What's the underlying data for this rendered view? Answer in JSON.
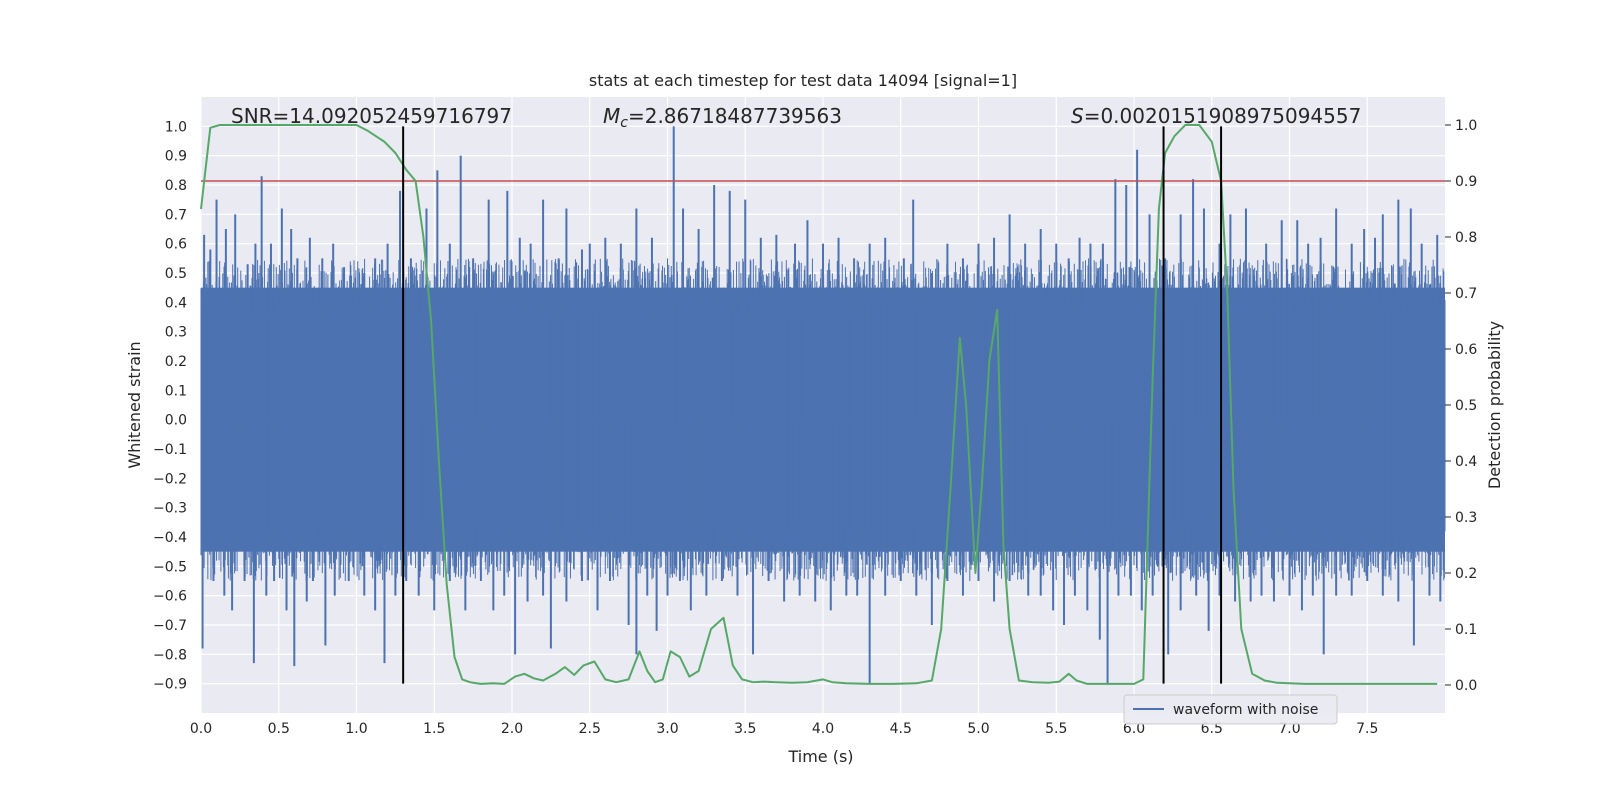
{
  "chart_data": {
    "type": "line",
    "title": "stats at each timestep for test data 14094 [signal=1]",
    "xlabel": "Time (s)",
    "ylabel": "Whitened strain",
    "y2label": "Detection probability",
    "xlim": [
      0.0,
      8.0
    ],
    "ylim": [
      -1.0,
      1.1
    ],
    "y2lim": [
      -0.05,
      1.05
    ],
    "xticks": [
      "0.0",
      "0.5",
      "1.0",
      "1.5",
      "2.0",
      "2.5",
      "3.0",
      "3.5",
      "4.0",
      "4.5",
      "5.0",
      "5.5",
      "6.0",
      "6.5",
      "7.0",
      "7.5"
    ],
    "yticks": [
      "-0.9",
      "-0.8",
      "-0.7",
      "-0.6",
      "-0.5",
      "-0.4",
      "-0.3",
      "-0.2",
      "-0.1",
      "0.0",
      "0.1",
      "0.2",
      "0.3",
      "0.4",
      "0.5",
      "0.6",
      "0.7",
      "0.8",
      "0.9",
      "1.0"
    ],
    "y2ticks": [
      "0.0",
      "0.1",
      "0.2",
      "0.3",
      "0.4",
      "0.5",
      "0.6",
      "0.7",
      "0.8",
      "0.9",
      "1.0"
    ],
    "grid": true,
    "legend": {
      "location": "lower-right",
      "entries": [
        "waveform with noise"
      ]
    },
    "annotations": {
      "snr": "SNR=14.092052459716797",
      "mc_symbol": "M",
      "mc_sub": "c",
      "mc_value": "=2.86718487739563",
      "s_symbol": "S",
      "s_value": "=0.0020151908975094557"
    },
    "threshold_line": {
      "axis": "y2",
      "value": 0.9,
      "color": "#c44e52"
    },
    "vertical_lines": [
      1.3,
      6.19,
      6.56
    ],
    "waveform": {
      "name": "waveform with noise",
      "color": "#4c72b0",
      "core_band": [
        -0.45,
        0.45
      ],
      "upper_spikes": [
        {
          "x": 0.02,
          "y": 0.63
        },
        {
          "x": 0.06,
          "y": 0.58
        },
        {
          "x": 0.1,
          "y": 0.75
        },
        {
          "x": 0.16,
          "y": 0.65
        },
        {
          "x": 0.22,
          "y": 0.7
        },
        {
          "x": 0.3,
          "y": 0.53
        },
        {
          "x": 0.35,
          "y": 0.6
        },
        {
          "x": 0.39,
          "y": 0.83
        },
        {
          "x": 0.45,
          "y": 0.6
        },
        {
          "x": 0.52,
          "y": 0.72
        },
        {
          "x": 0.58,
          "y": 0.65
        },
        {
          "x": 0.62,
          "y": 0.55
        },
        {
          "x": 0.7,
          "y": 0.62
        },
        {
          "x": 0.78,
          "y": 0.55
        },
        {
          "x": 0.85,
          "y": 0.6
        },
        {
          "x": 0.92,
          "y": 0.52
        },
        {
          "x": 1.05,
          "y": 0.5
        },
        {
          "x": 1.12,
          "y": 0.55
        },
        {
          "x": 1.2,
          "y": 0.6
        },
        {
          "x": 1.28,
          "y": 0.78
        },
        {
          "x": 1.35,
          "y": 0.55
        },
        {
          "x": 1.45,
          "y": 0.72
        },
        {
          "x": 1.52,
          "y": 0.85
        },
        {
          "x": 1.6,
          "y": 0.6
        },
        {
          "x": 1.67,
          "y": 0.9
        },
        {
          "x": 1.75,
          "y": 0.55
        },
        {
          "x": 1.85,
          "y": 0.75
        },
        {
          "x": 1.97,
          "y": 0.78
        },
        {
          "x": 2.05,
          "y": 0.62
        },
        {
          "x": 2.12,
          "y": 0.6
        },
        {
          "x": 2.2,
          "y": 0.75
        },
        {
          "x": 2.3,
          "y": 0.55
        },
        {
          "x": 2.35,
          "y": 0.72
        },
        {
          "x": 2.45,
          "y": 0.58
        },
        {
          "x": 2.5,
          "y": 0.6
        },
        {
          "x": 2.6,
          "y": 0.62
        },
        {
          "x": 2.7,
          "y": 0.6
        },
        {
          "x": 2.8,
          "y": 0.72
        },
        {
          "x": 2.9,
          "y": 0.62
        },
        {
          "x": 3.04,
          "y": 1.0
        },
        {
          "x": 3.1,
          "y": 0.72
        },
        {
          "x": 3.2,
          "y": 0.65
        },
        {
          "x": 3.3,
          "y": 0.8
        },
        {
          "x": 3.4,
          "y": 0.78
        },
        {
          "x": 3.5,
          "y": 0.75
        },
        {
          "x": 3.6,
          "y": 0.62
        },
        {
          "x": 3.7,
          "y": 0.63
        },
        {
          "x": 3.82,
          "y": 0.6
        },
        {
          "x": 3.9,
          "y": 0.68
        },
        {
          "x": 4.0,
          "y": 0.6
        },
        {
          "x": 4.1,
          "y": 0.62
        },
        {
          "x": 4.2,
          "y": 0.55
        },
        {
          "x": 4.3,
          "y": 0.6
        },
        {
          "x": 4.4,
          "y": 0.62
        },
        {
          "x": 4.52,
          "y": 0.55
        },
        {
          "x": 4.58,
          "y": 0.75
        },
        {
          "x": 4.7,
          "y": 0.5
        },
        {
          "x": 4.8,
          "y": 0.6
        },
        {
          "x": 4.9,
          "y": 0.55
        },
        {
          "x": 5.0,
          "y": 0.6
        },
        {
          "x": 5.1,
          "y": 0.62
        },
        {
          "x": 5.2,
          "y": 0.7
        },
        {
          "x": 5.3,
          "y": 0.6
        },
        {
          "x": 5.4,
          "y": 0.65
        },
        {
          "x": 5.5,
          "y": 0.6
        },
        {
          "x": 5.58,
          "y": 0.55
        },
        {
          "x": 5.65,
          "y": 0.62
        },
        {
          "x": 5.72,
          "y": 0.6
        },
        {
          "x": 5.8,
          "y": 0.6
        },
        {
          "x": 5.88,
          "y": 0.82
        },
        {
          "x": 5.95,
          "y": 0.8
        },
        {
          "x": 6.02,
          "y": 0.92
        },
        {
          "x": 6.1,
          "y": 0.7
        },
        {
          "x": 6.2,
          "y": 0.55
        },
        {
          "x": 6.3,
          "y": 0.7
        },
        {
          "x": 6.38,
          "y": 0.82
        },
        {
          "x": 6.45,
          "y": 0.72
        },
        {
          "x": 6.55,
          "y": 0.6
        },
        {
          "x": 6.62,
          "y": 0.7
        },
        {
          "x": 6.72,
          "y": 0.72
        },
        {
          "x": 6.85,
          "y": 0.6
        },
        {
          "x": 6.95,
          "y": 0.68
        },
        {
          "x": 7.05,
          "y": 0.68
        },
        {
          "x": 7.12,
          "y": 0.6
        },
        {
          "x": 7.2,
          "y": 0.62
        },
        {
          "x": 7.3,
          "y": 0.72
        },
        {
          "x": 7.4,
          "y": 0.6
        },
        {
          "x": 7.48,
          "y": 0.65
        },
        {
          "x": 7.55,
          "y": 0.62
        },
        {
          "x": 7.6,
          "y": 0.7
        },
        {
          "x": 7.7,
          "y": 0.75
        },
        {
          "x": 7.78,
          "y": 0.72
        },
        {
          "x": 7.85,
          "y": 0.6
        },
        {
          "x": 7.95,
          "y": 0.63
        }
      ],
      "lower_spikes": [
        {
          "x": 0.01,
          "y": -0.78
        },
        {
          "x": 0.08,
          "y": -0.55
        },
        {
          "x": 0.15,
          "y": -0.6
        },
        {
          "x": 0.2,
          "y": -0.65
        },
        {
          "x": 0.28,
          "y": -0.55
        },
        {
          "x": 0.34,
          "y": -0.83
        },
        {
          "x": 0.42,
          "y": -0.6
        },
        {
          "x": 0.47,
          "y": -0.55
        },
        {
          "x": 0.55,
          "y": -0.65
        },
        {
          "x": 0.6,
          "y": -0.84
        },
        {
          "x": 0.68,
          "y": -0.62
        },
        {
          "x": 0.72,
          "y": -0.55
        },
        {
          "x": 0.8,
          "y": -0.77
        },
        {
          "x": 0.86,
          "y": -0.6
        },
        {
          "x": 0.95,
          "y": -0.55
        },
        {
          "x": 1.05,
          "y": -0.6
        },
        {
          "x": 1.12,
          "y": -0.65
        },
        {
          "x": 1.18,
          "y": -0.83
        },
        {
          "x": 1.25,
          "y": -0.6
        },
        {
          "x": 1.32,
          "y": -0.55
        },
        {
          "x": 1.4,
          "y": -0.6
        },
        {
          "x": 1.5,
          "y": -0.65
        },
        {
          "x": 1.6,
          "y": -0.55
        },
        {
          "x": 1.7,
          "y": -0.65
        },
        {
          "x": 1.8,
          "y": -0.55
        },
        {
          "x": 1.88,
          "y": -0.65
        },
        {
          "x": 1.95,
          "y": -0.6
        },
        {
          "x": 2.02,
          "y": -0.8
        },
        {
          "x": 2.1,
          "y": -0.62
        },
        {
          "x": 2.2,
          "y": -0.6
        },
        {
          "x": 2.25,
          "y": -0.78
        },
        {
          "x": 2.35,
          "y": -0.62
        },
        {
          "x": 2.45,
          "y": -0.55
        },
        {
          "x": 2.55,
          "y": -0.65
        },
        {
          "x": 2.63,
          "y": -0.55
        },
        {
          "x": 2.75,
          "y": -0.7
        },
        {
          "x": 2.8,
          "y": -0.8
        },
        {
          "x": 2.87,
          "y": -0.6
        },
        {
          "x": 2.93,
          "y": -0.72
        },
        {
          "x": 3.0,
          "y": -0.6
        },
        {
          "x": 3.08,
          "y": -0.55
        },
        {
          "x": 3.15,
          "y": -0.65
        },
        {
          "x": 3.25,
          "y": -0.6
        },
        {
          "x": 3.35,
          "y": -0.55
        },
        {
          "x": 3.45,
          "y": -0.6
        },
        {
          "x": 3.55,
          "y": -0.8
        },
        {
          "x": 3.65,
          "y": -0.55
        },
        {
          "x": 3.75,
          "y": -0.62
        },
        {
          "x": 3.85,
          "y": -0.6
        },
        {
          "x": 3.95,
          "y": -0.62
        },
        {
          "x": 4.05,
          "y": -0.65
        },
        {
          "x": 4.15,
          "y": -0.6
        },
        {
          "x": 4.22,
          "y": -0.6
        },
        {
          "x": 4.3,
          "y": -0.9
        },
        {
          "x": 4.4,
          "y": -0.6
        },
        {
          "x": 4.5,
          "y": -0.55
        },
        {
          "x": 4.6,
          "y": -0.6
        },
        {
          "x": 4.7,
          "y": -0.7
        },
        {
          "x": 4.8,
          "y": -0.55
        },
        {
          "x": 4.9,
          "y": -0.6
        },
        {
          "x": 5.0,
          "y": -0.55
        },
        {
          "x": 5.1,
          "y": -0.62
        },
        {
          "x": 5.2,
          "y": -0.55
        },
        {
          "x": 5.32,
          "y": -0.6
        },
        {
          "x": 5.4,
          "y": -0.6
        },
        {
          "x": 5.48,
          "y": -0.65
        },
        {
          "x": 5.55,
          "y": -0.7
        },
        {
          "x": 5.62,
          "y": -0.6
        },
        {
          "x": 5.7,
          "y": -0.65
        },
        {
          "x": 5.78,
          "y": -0.75
        },
        {
          "x": 5.83,
          "y": -0.9
        },
        {
          "x": 5.9,
          "y": -0.6
        },
        {
          "x": 5.98,
          "y": -0.6
        },
        {
          "x": 6.05,
          "y": -0.65
        },
        {
          "x": 6.12,
          "y": -0.6
        },
        {
          "x": 6.22,
          "y": -0.8
        },
        {
          "x": 6.3,
          "y": -0.65
        },
        {
          "x": 6.4,
          "y": -0.6
        },
        {
          "x": 6.48,
          "y": -0.72
        },
        {
          "x": 6.55,
          "y": -0.6
        },
        {
          "x": 6.65,
          "y": -0.62
        },
        {
          "x": 6.75,
          "y": -0.62
        },
        {
          "x": 6.82,
          "y": -0.6
        },
        {
          "x": 6.9,
          "y": -0.62
        },
        {
          "x": 7.0,
          "y": -0.6
        },
        {
          "x": 7.08,
          "y": -0.65
        },
        {
          "x": 7.15,
          "y": -0.6
        },
        {
          "x": 7.22,
          "y": -0.8
        },
        {
          "x": 7.3,
          "y": -0.6
        },
        {
          "x": 7.4,
          "y": -0.6
        },
        {
          "x": 7.5,
          "y": -0.55
        },
        {
          "x": 7.6,
          "y": -0.6
        },
        {
          "x": 7.7,
          "y": -0.62
        },
        {
          "x": 7.8,
          "y": -0.77
        },
        {
          "x": 7.9,
          "y": -0.6
        },
        {
          "x": 7.97,
          "y": -0.62
        }
      ]
    },
    "probability": {
      "name": "Detection probability",
      "color": "#55a868",
      "x": [
        0.0,
        0.06,
        0.12,
        0.2,
        0.3,
        0.45,
        0.6,
        0.8,
        1.0,
        1.07,
        1.18,
        1.25,
        1.32,
        1.38,
        1.43,
        1.48,
        1.53,
        1.58,
        1.63,
        1.68,
        1.73,
        1.8,
        1.88,
        1.95,
        2.02,
        2.08,
        2.14,
        2.2,
        2.28,
        2.34,
        2.4,
        2.46,
        2.53,
        2.6,
        2.67,
        2.75,
        2.82,
        2.87,
        2.92,
        2.97,
        3.02,
        3.08,
        3.14,
        3.2,
        3.28,
        3.36,
        3.42,
        3.48,
        3.55,
        3.62,
        3.7,
        3.8,
        3.9,
        4.0,
        4.06,
        4.15,
        4.3,
        4.45,
        4.6,
        4.7,
        4.76,
        4.82,
        4.88,
        4.92,
        4.98,
        5.02,
        5.07,
        5.12,
        5.16,
        5.2,
        5.26,
        5.35,
        5.45,
        5.52,
        5.58,
        5.63,
        5.7,
        5.8,
        5.9,
        6.0,
        6.06,
        6.12,
        6.16,
        6.2,
        6.26,
        6.33,
        6.42,
        6.5,
        6.56,
        6.6,
        6.64,
        6.69,
        6.76,
        6.84,
        6.92,
        7.0,
        7.1,
        7.3,
        7.5,
        7.7,
        7.95
      ],
      "y": [
        0.85,
        0.995,
        1.0,
        1.0,
        1.0,
        1.0,
        1.0,
        1.0,
        1.0,
        0.99,
        0.97,
        0.95,
        0.92,
        0.9,
        0.8,
        0.65,
        0.4,
        0.18,
        0.05,
        0.01,
        0.005,
        0.002,
        0.003,
        0.002,
        0.015,
        0.02,
        0.012,
        0.008,
        0.02,
        0.032,
        0.018,
        0.035,
        0.042,
        0.01,
        0.005,
        0.01,
        0.06,
        0.025,
        0.005,
        0.01,
        0.06,
        0.05,
        0.015,
        0.025,
        0.1,
        0.12,
        0.035,
        0.01,
        0.005,
        0.006,
        0.005,
        0.004,
        0.005,
        0.01,
        0.005,
        0.003,
        0.002,
        0.002,
        0.003,
        0.008,
        0.1,
        0.35,
        0.62,
        0.5,
        0.2,
        0.35,
        0.58,
        0.67,
        0.25,
        0.1,
        0.008,
        0.005,
        0.004,
        0.006,
        0.02,
        0.008,
        0.002,
        0.002,
        0.002,
        0.002,
        0.01,
        0.55,
        0.85,
        0.95,
        0.98,
        1.0,
        1.0,
        0.97,
        0.9,
        0.7,
        0.35,
        0.1,
        0.02,
        0.008,
        0.004,
        0.003,
        0.002,
        0.002,
        0.002,
        0.002,
        0.002
      ]
    }
  }
}
